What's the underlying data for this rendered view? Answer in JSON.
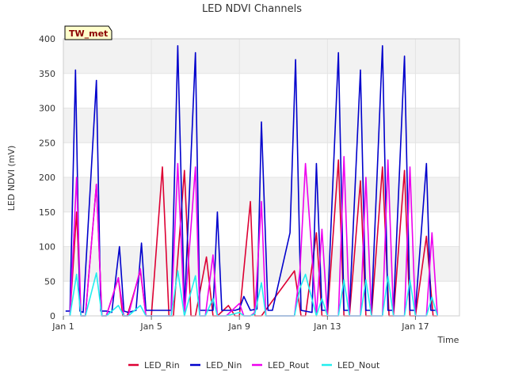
{
  "chart_data": {
    "type": "line",
    "title": "LED NDVI Channels",
    "xlabel": "Time",
    "ylabel": "LED NDVI (mV)",
    "badge": "TW_met",
    "ylim": [
      0,
      400
    ],
    "xlim": [
      0,
      18
    ],
    "yticks": [
      0,
      50,
      100,
      150,
      200,
      250,
      300,
      350,
      400
    ],
    "xticks": [
      {
        "value": 0,
        "label": "Jan 1"
      },
      {
        "value": 4,
        "label": "Jan 5"
      },
      {
        "value": 8,
        "label": "Jan 9"
      },
      {
        "value": 12,
        "label": "Jan 13"
      },
      {
        "value": 16,
        "label": "Jan 17"
      }
    ],
    "grid": true,
    "legend_position": "bottom",
    "series": [
      {
        "name": "LED_Rin",
        "color": "#dd0033",
        "x": [
          0.3,
          0.6,
          0.8,
          1.0,
          1.5,
          1.75,
          1.95,
          2.5,
          2.7,
          2.9,
          3.5,
          3.75,
          4.0,
          4.5,
          4.8,
          5.0,
          5.5,
          5.8,
          6.0,
          6.5,
          6.8,
          7.0,
          7.5,
          7.8,
          8.0,
          8.5,
          8.7,
          9.0,
          10.5,
          10.8,
          11.0,
          11.5,
          11.75,
          12.0,
          12.5,
          12.75,
          13.0,
          13.5,
          13.75,
          14.0,
          14.5,
          14.8,
          15.0,
          15.5,
          15.75,
          16.0,
          16.5,
          16.8,
          17.0
        ],
        "y": [
          0,
          150,
          0,
          0,
          190,
          0,
          0,
          55,
          0,
          0,
          65,
          0,
          0,
          215,
          0,
          0,
          210,
          0,
          0,
          85,
          0,
          0,
          15,
          0,
          0,
          165,
          0,
          0,
          65,
          0,
          0,
          120,
          0,
          0,
          225,
          0,
          0,
          195,
          0,
          0,
          215,
          0,
          0,
          210,
          0,
          0,
          115,
          0,
          0
        ]
      },
      {
        "name": "LED_Nin",
        "color": "#0000cc",
        "x": [
          0.1,
          0.3,
          0.55,
          0.75,
          0.9,
          1.5,
          1.7,
          1.95,
          2.2,
          2.55,
          2.75,
          2.95,
          3.3,
          3.55,
          3.75,
          4.0,
          4.9,
          5.2,
          5.5,
          6.0,
          6.2,
          6.45,
          6.8,
          7.0,
          7.2,
          7.4,
          7.8,
          8.0,
          8.2,
          8.5,
          8.8,
          9.0,
          9.3,
          9.5,
          10.3,
          10.55,
          10.8,
          11.3,
          11.5,
          11.75,
          12.0,
          12.5,
          12.75,
          13.0,
          13.5,
          13.75,
          14.0,
          14.5,
          14.75,
          15.0,
          15.5,
          15.75,
          16.0,
          16.5,
          16.7,
          16.95
        ],
        "y": [
          7,
          7,
          355,
          7,
          5,
          340,
          7,
          7,
          5,
          100,
          7,
          5,
          8,
          105,
          8,
          8,
          8,
          390,
          8,
          380,
          8,
          8,
          8,
          150,
          8,
          8,
          8,
          10,
          28,
          8,
          10,
          280,
          8,
          8,
          120,
          370,
          8,
          5,
          220,
          8,
          8,
          380,
          8,
          8,
          355,
          8,
          8,
          390,
          8,
          8,
          375,
          8,
          8,
          220,
          8,
          8
        ]
      },
      {
        "name": "LED_Rout",
        "color": "#ee00ee",
        "x": [
          0.3,
          0.6,
          0.8,
          1.0,
          1.5,
          1.75,
          1.95,
          2.5,
          2.75,
          2.95,
          3.5,
          3.75,
          4.0,
          4.9,
          5.2,
          5.5,
          6.0,
          6.2,
          6.45,
          6.8,
          7.0,
          7.2,
          7.4,
          8.0,
          8.2,
          8.5,
          8.7,
          9.0,
          9.2,
          10.5,
          10.75,
          11.0,
          11.5,
          11.75,
          12.0,
          12.5,
          12.75,
          13.0,
          13.5,
          13.75,
          14.0,
          14.5,
          14.75,
          15.0,
          15.5,
          15.75,
          16.0,
          16.5,
          16.75,
          17.0
        ],
        "y": [
          0,
          200,
          0,
          0,
          190,
          0,
          0,
          55,
          0,
          0,
          68,
          0,
          0,
          0,
          220,
          0,
          215,
          0,
          0,
          88,
          0,
          0,
          0,
          18,
          0,
          0,
          5,
          165,
          0,
          0,
          65,
          220,
          0,
          125,
          0,
          0,
          230,
          0,
          0,
          200,
          0,
          0,
          225,
          0,
          0,
          215,
          0,
          0,
          120,
          0
        ]
      },
      {
        "name": "LED_Nout",
        "color": "#22eeee",
        "x": [
          0.3,
          0.6,
          0.8,
          1.0,
          1.5,
          1.75,
          1.95,
          2.5,
          2.75,
          2.95,
          3.5,
          3.75,
          4.0,
          4.9,
          5.2,
          5.5,
          6.0,
          6.2,
          6.45,
          6.8,
          7.0,
          7.2,
          7.4,
          8.0,
          8.2,
          8.5,
          8.7,
          9.0,
          9.2,
          10.5,
          10.75,
          11.0,
          11.5,
          11.75,
          12.0,
          12.5,
          12.75,
          13.0,
          13.5,
          13.75,
          14.0,
          14.5,
          14.75,
          15.0,
          15.5,
          15.75,
          16.0,
          16.5,
          16.75,
          17.0
        ],
        "y": [
          0,
          60,
          0,
          0,
          62,
          0,
          0,
          15,
          0,
          0,
          15,
          0,
          0,
          0,
          65,
          0,
          58,
          0,
          0,
          25,
          0,
          0,
          0,
          5,
          0,
          0,
          3,
          48,
          0,
          0,
          40,
          60,
          0,
          25,
          0,
          0,
          52,
          0,
          0,
          52,
          0,
          0,
          57,
          0,
          0,
          52,
          0,
          0,
          27,
          0
        ]
      }
    ]
  }
}
